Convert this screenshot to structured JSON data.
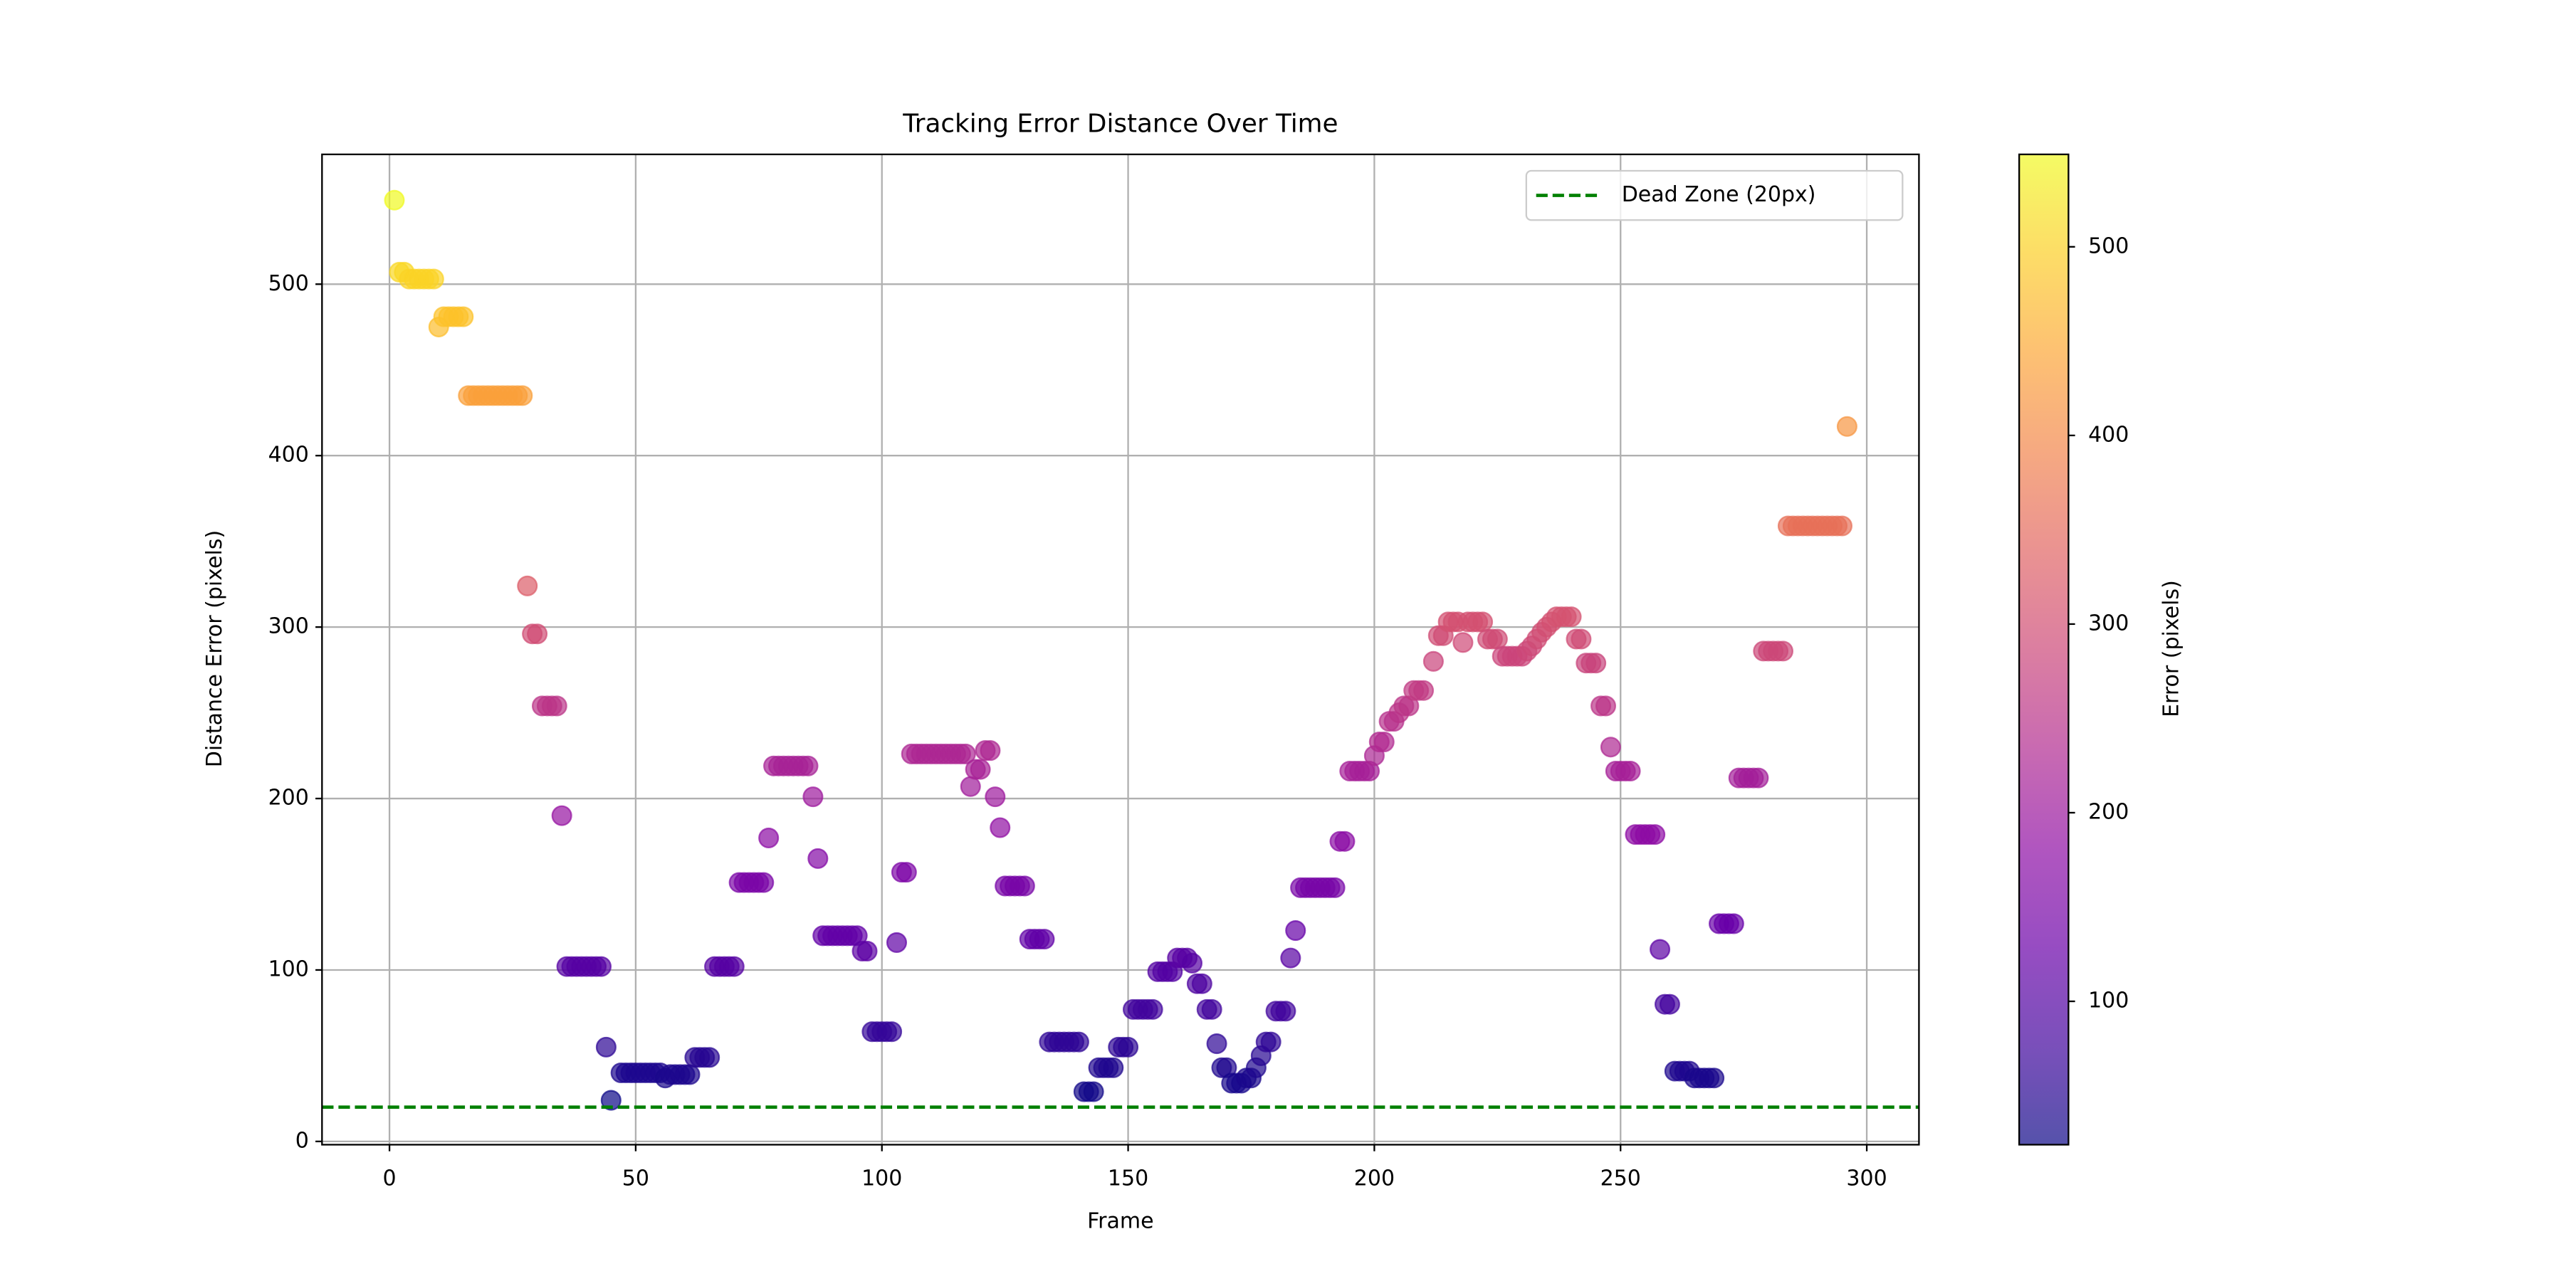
{
  "chart_data": {
    "type": "scatter",
    "title": "Tracking Error Distance Over Time",
    "x_label": "Frame",
    "y_label": "Distance Error (pixels)",
    "x": [
      1,
      2,
      3,
      4,
      5,
      6,
      7,
      8,
      9,
      10,
      11,
      12,
      13,
      14,
      15,
      16,
      17,
      18,
      19,
      20,
      21,
      22,
      23,
      24,
      25,
      26,
      27,
      28,
      29,
      30,
      31,
      32,
      33,
      34,
      35,
      36,
      37,
      38,
      39,
      40,
      41,
      42,
      43,
      44,
      45,
      47,
      48,
      49,
      50,
      51,
      52,
      53,
      54,
      55,
      56,
      57,
      58,
      59,
      60,
      61,
      62,
      63,
      64,
      65,
      66,
      67,
      68,
      69,
      70,
      71,
      72,
      73,
      74,
      75,
      76,
      77,
      78,
      79,
      80,
      81,
      82,
      83,
      84,
      85,
      86,
      87,
      88,
      89,
      90,
      91,
      92,
      93,
      94,
      95,
      96,
      97,
      98,
      99,
      100,
      101,
      102,
      103,
      104,
      105,
      106,
      107,
      108,
      109,
      110,
      111,
      112,
      113,
      114,
      115,
      116,
      117,
      118,
      119,
      120,
      121,
      122,
      123,
      124,
      125,
      126,
      127,
      128,
      129,
      130,
      131,
      132,
      133,
      134,
      135,
      136,
      137,
      138,
      139,
      140,
      141,
      142,
      143,
      144,
      145,
      146,
      147,
      148,
      149,
      150,
      151,
      152,
      153,
      154,
      155,
      156,
      157,
      158,
      159,
      160,
      161,
      162,
      163,
      164,
      165,
      166,
      167,
      168,
      169,
      170,
      171,
      172,
      173,
      174,
      175,
      176,
      177,
      178,
      179,
      180,
      181,
      182,
      183,
      184,
      185,
      186,
      187,
      188,
      189,
      190,
      191,
      192,
      193,
      194,
      195,
      196,
      197,
      198,
      199,
      200,
      201,
      202,
      203,
      204,
      205,
      206,
      207,
      208,
      209,
      210,
      212,
      213,
      214,
      215,
      216,
      217,
      218,
      219,
      220,
      221,
      222,
      223,
      224,
      225,
      226,
      227,
      228,
      229,
      230,
      231,
      232,
      233,
      234,
      235,
      236,
      237,
      238,
      239,
      240,
      241,
      242,
      243,
      244,
      245,
      246,
      247,
      248,
      249,
      250,
      251,
      252,
      253,
      254,
      255,
      256,
      257,
      258,
      259,
      260,
      261,
      262,
      263,
      264,
      265,
      266,
      267,
      268,
      269,
      270,
      271,
      272,
      273,
      274,
      275,
      276,
      277,
      278,
      279,
      280,
      281,
      282,
      283,
      284,
      285,
      286,
      287,
      288,
      289,
      290,
      291,
      292,
      293,
      294,
      295,
      296
    ],
    "values": [
      549,
      507,
      507,
      503,
      503,
      503,
      503,
      503,
      503,
      475,
      481,
      481,
      481,
      481,
      481,
      435,
      435,
      435,
      435,
      435,
      435,
      435,
      435,
      435,
      435,
      435,
      435,
      324,
      296,
      296,
      254,
      254,
      254,
      254,
      190,
      102,
      102,
      102,
      102,
      102,
      102,
      102,
      102,
      55,
      24,
      40,
      40,
      40,
      40,
      40,
      40,
      40,
      40,
      40,
      37,
      39,
      39,
      39,
      39,
      39,
      49,
      49,
      49,
      49,
      102,
      102,
      102,
      102,
      102,
      151,
      151,
      151,
      151,
      151,
      151,
      177,
      219,
      219,
      219,
      219,
      219,
      219,
      219,
      219,
      201,
      165,
      120,
      120,
      120,
      120,
      120,
      120,
      120,
      120,
      111,
      111,
      64,
      64,
      64,
      64,
      64,
      116,
      157,
      157,
      226,
      226,
      226,
      226,
      226,
      226,
      226,
      226,
      226,
      226,
      226,
      226,
      207,
      217,
      217,
      228,
      228,
      201,
      183,
      149,
      149,
      149,
      149,
      149,
      118,
      118,
      118,
      118,
      58,
      58,
      58,
      58,
      58,
      58,
      58,
      29,
      29,
      29,
      43,
      43,
      43,
      43,
      55,
      55,
      55,
      77,
      77,
      77,
      77,
      77,
      99,
      99,
      99,
      99,
      107,
      107,
      107,
      104,
      92,
      92,
      77,
      77,
      57,
      43,
      43,
      34,
      34,
      34,
      37,
      37,
      43,
      50,
      58,
      58,
      76,
      76,
      76,
      107,
      123,
      148,
      148,
      148,
      148,
      148,
      148,
      148,
      148,
      175,
      175,
      216,
      216,
      216,
      216,
      216,
      225,
      233,
      233,
      245,
      245,
      250,
      254,
      254,
      263,
      263,
      263,
      280,
      295,
      295,
      303,
      303,
      303,
      291,
      303,
      303,
      303,
      303,
      293,
      293,
      293,
      283,
      283,
      283,
      283,
      283,
      286,
      289,
      293,
      297,
      300,
      303,
      306,
      306,
      306,
      306,
      293,
      293,
      279,
      279,
      279,
      254,
      254,
      230,
      216,
      216,
      216,
      216,
      179,
      179,
      179,
      179,
      179,
      112,
      80,
      80,
      41,
      41,
      41,
      41,
      37,
      37,
      37,
      37,
      37,
      127,
      127,
      127,
      127,
      212,
      212,
      212,
      212,
      212,
      286,
      286,
      286,
      286,
      286,
      359,
      359,
      359,
      359,
      359,
      359,
      359,
      359,
      359,
      359,
      359,
      359,
      417
    ],
    "colormap": "plasma",
    "clim": [
      24,
      549
    ],
    "colorbar": {
      "label": "Error (pixels)",
      "ticks": [
        100,
        200,
        300,
        400,
        500
      ]
    },
    "reference_line": {
      "y": 20,
      "label": "Dead Zone (20px)",
      "color": "green",
      "style": "dashed"
    },
    "legend": "upper right",
    "xlim": [
      -13.7,
      310.6
    ],
    "xticks": [
      0,
      50,
      100,
      150,
      200,
      250,
      300
    ],
    "ylim": [
      -1.9,
      575.7
    ],
    "yticks": [
      0,
      100,
      200,
      300,
      400,
      500
    ],
    "grid": true
  }
}
